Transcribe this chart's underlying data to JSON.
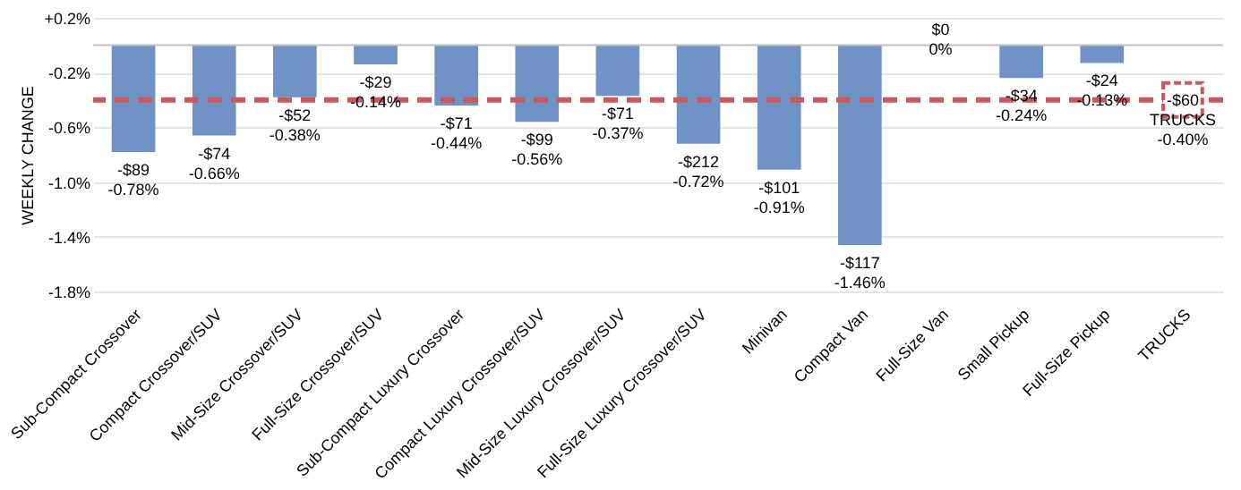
{
  "chart_data": {
    "type": "bar",
    "ylabel": "WEEKLY CHANGE",
    "categories": [
      "Sub-Compact Crossover",
      "Compact Crossover/SUV",
      "Mid-Size Crossover/SUV",
      "Full-Size Crossover/SUV",
      "Sub-Compact Luxury Crossover",
      "Compact Luxury Crossover/SUV",
      "Mid-Size Luxury Crossover/SUV",
      "Full-Size Luxury Crossover/SUV",
      "Minivan",
      "Compact Van",
      "Full-Size Van",
      "Small Pickup",
      "Full-Size Pickup",
      "TRUCKS"
    ],
    "values": [
      -0.78,
      -0.66,
      -0.38,
      -0.14,
      -0.44,
      -0.56,
      -0.37,
      -0.72,
      -0.91,
      -1.46,
      0,
      -0.24,
      -0.13,
      null
    ],
    "value_labels": [
      "-$89\n-0.78%",
      "-$74\n-0.66%",
      "-$52\n-0.38%",
      "-$29\n-0.14%",
      "-$71\n-0.44%",
      "-$99\n-0.56%",
      "-$71\n-0.37%",
      "-$212\n-0.72%",
      "-$101\n-0.91%",
      "-$117\n-1.46%",
      "$0\n0%",
      "-$34\n-0.24%",
      "-$24\n-0.13%",
      null
    ],
    "color": "#6f93c6",
    "ylim": [
      -1.8,
      0.2
    ],
    "yticks": [
      {
        "value": 0.2,
        "label": "+0.2%"
      },
      {
        "value": -0.2,
        "label": "-0.2%"
      },
      {
        "value": -0.6,
        "label": "-0.6%"
      },
      {
        "value": -1.0,
        "label": "-1.0%"
      },
      {
        "value": -1.4,
        "label": "-1.4%"
      },
      {
        "value": -1.8,
        "label": "-1.8%"
      }
    ],
    "grid": "y",
    "ref_lines": [
      {
        "axis": "y",
        "value": -0.4,
        "label": "-$60\nTRUCKS\n-0.40%",
        "color": "#c9595a",
        "line_style": "dashed"
      }
    ]
  }
}
